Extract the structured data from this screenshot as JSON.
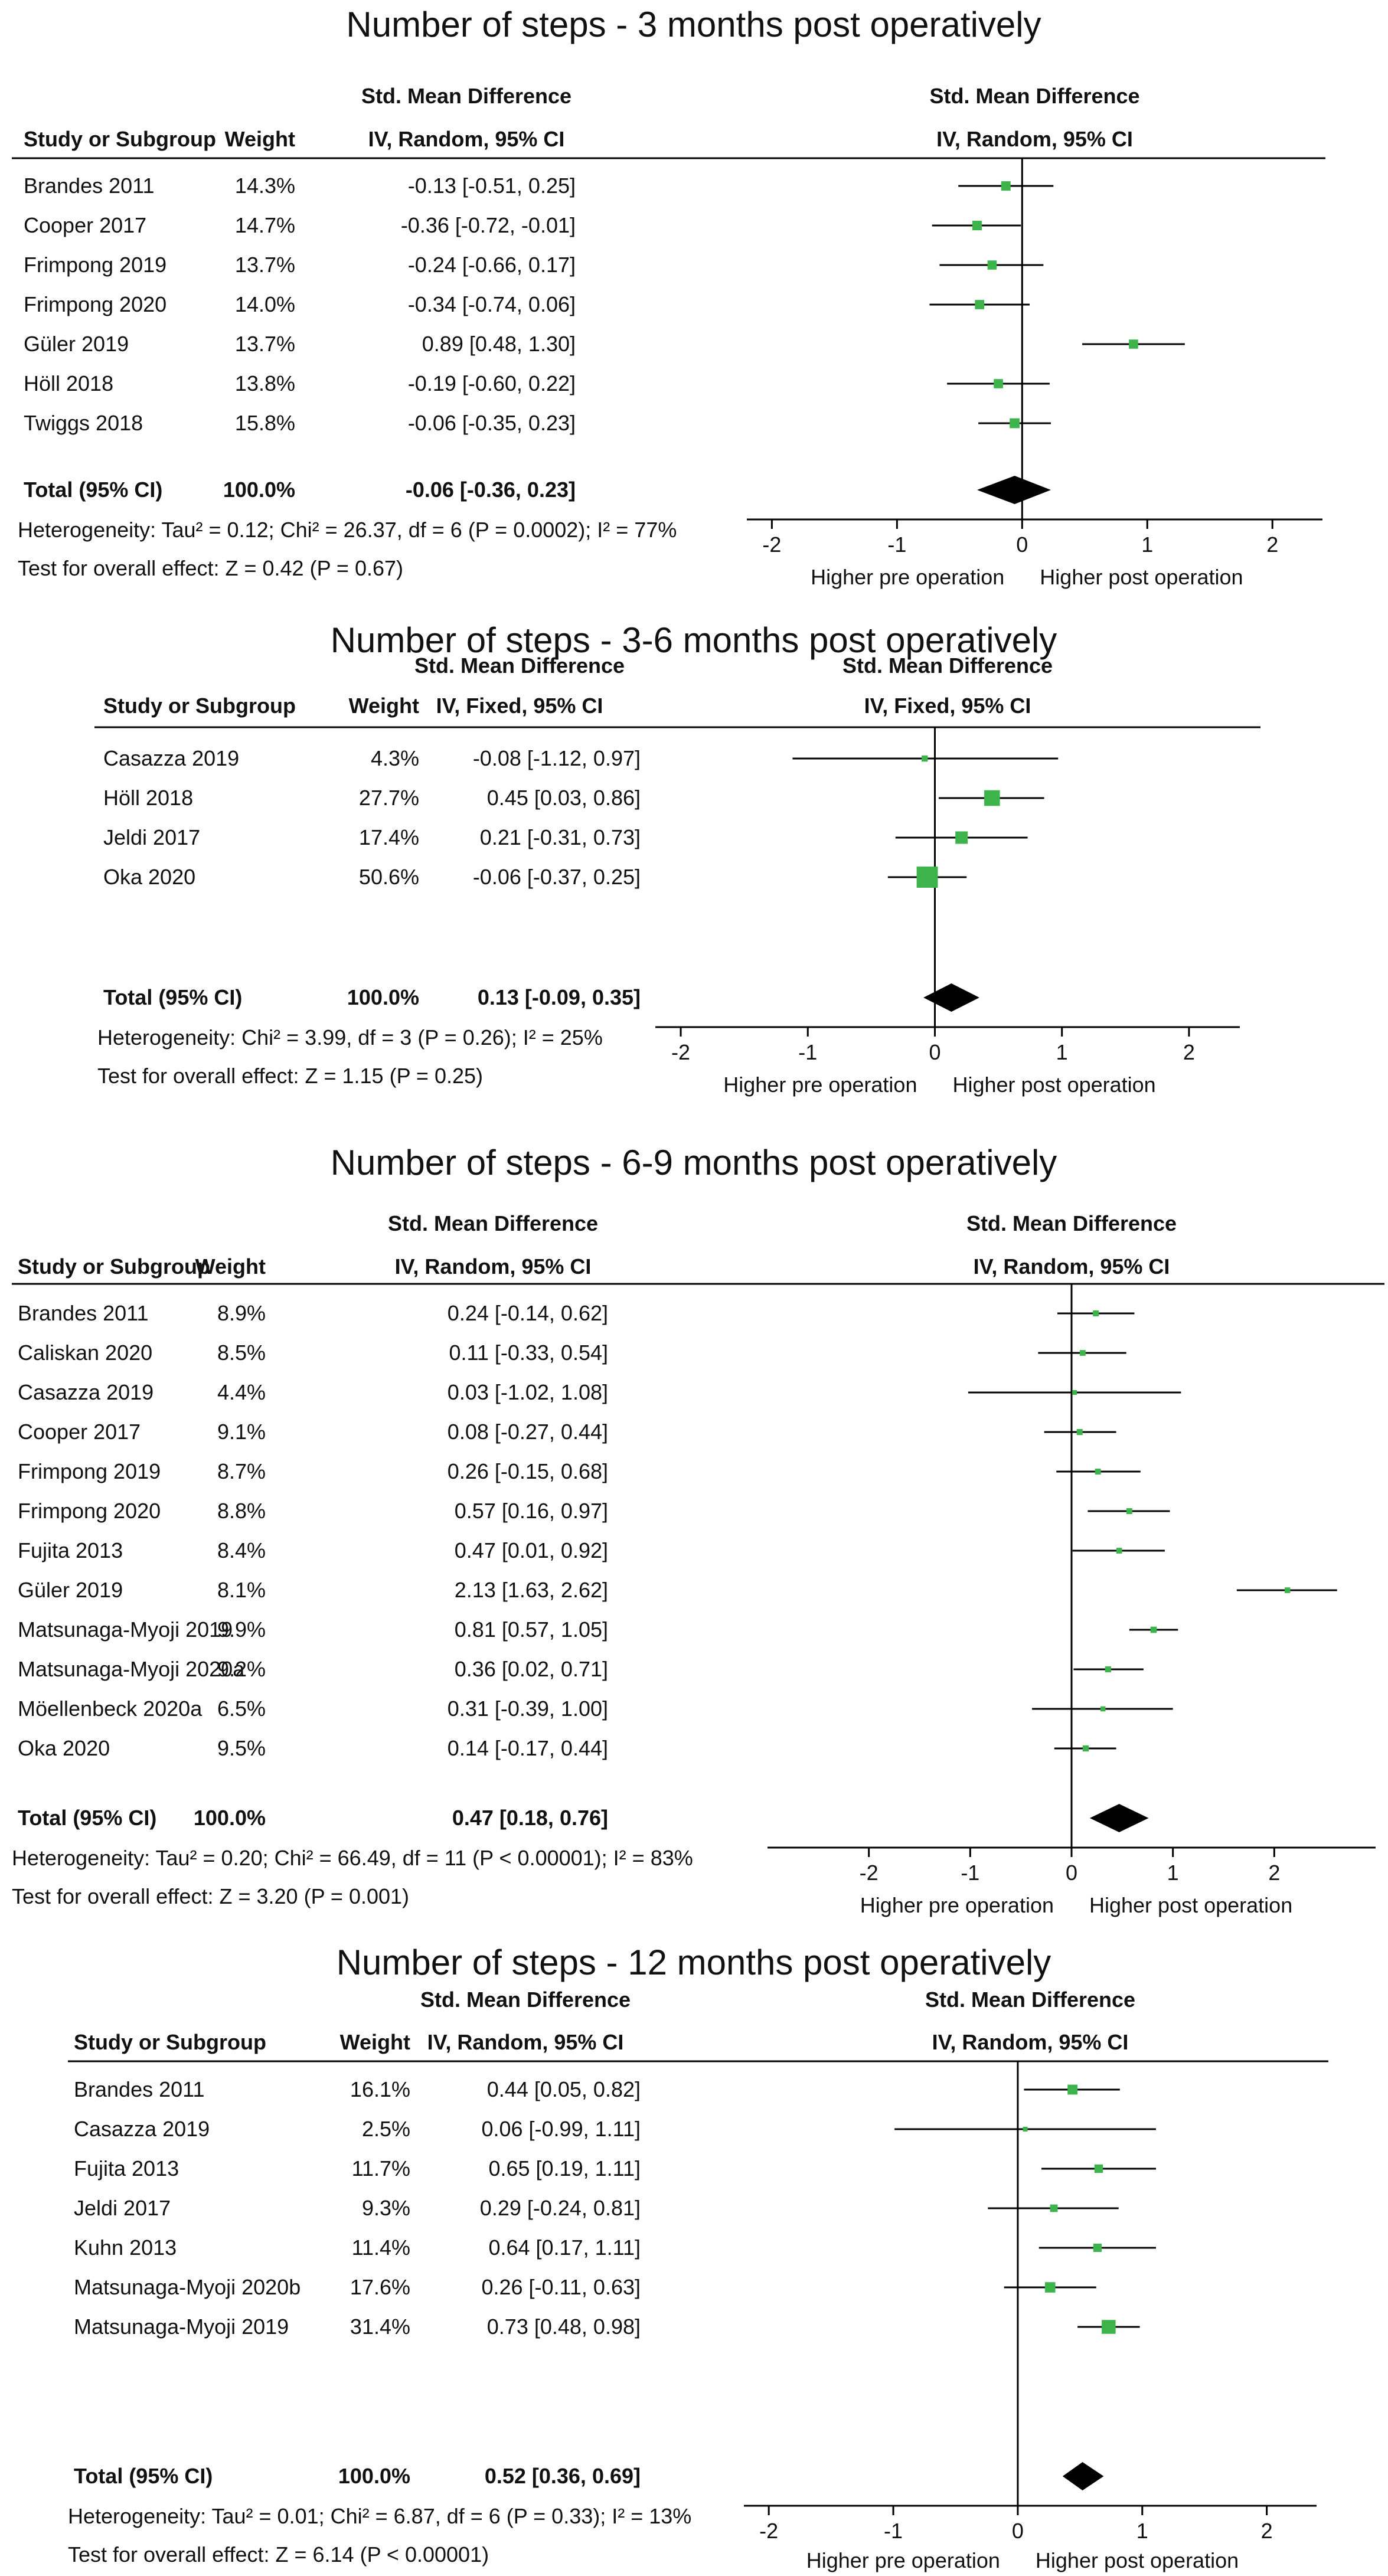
{
  "headers": {
    "study": "Study or Subgroup",
    "weight": "Weight",
    "smd": "Std. Mean Difference"
  },
  "favours": {
    "left": "Higher pre operation",
    "right": "Higher post operation"
  },
  "colors": {
    "marker": "#3cb44b",
    "diamond": "#000000",
    "line": "#000000"
  },
  "chart_data": [
    {
      "type": "forest",
      "title": "Number of steps - 3 months post operatively",
      "method": "IV, Random, 95% CI",
      "axis": {
        "ticks": [
          -2,
          -1,
          0,
          1,
          2
        ],
        "range": [
          -2.2,
          2.4
        ]
      },
      "studies": [
        {
          "name": "Brandes 2011",
          "weight": "14.3%",
          "ci_text": "-0.13 [-0.51, 0.25]",
          "est": -0.13,
          "lo": -0.51,
          "hi": 0.25
        },
        {
          "name": "Cooper 2017",
          "weight": "14.7%",
          "ci_text": "-0.36 [-0.72, -0.01]",
          "est": -0.36,
          "lo": -0.72,
          "hi": -0.01
        },
        {
          "name": "Frimpong 2019",
          "weight": "13.7%",
          "ci_text": "-0.24 [-0.66, 0.17]",
          "est": -0.24,
          "lo": -0.66,
          "hi": 0.17
        },
        {
          "name": "Frimpong 2020",
          "weight": "14.0%",
          "ci_text": "-0.34 [-0.74, 0.06]",
          "est": -0.34,
          "lo": -0.74,
          "hi": 0.06
        },
        {
          "name": "Güler 2019",
          "weight": "13.7%",
          "ci_text": "0.89 [0.48, 1.30]",
          "est": 0.89,
          "lo": 0.48,
          "hi": 1.3
        },
        {
          "name": "Höll 2018",
          "weight": "13.8%",
          "ci_text": "-0.19 [-0.60, 0.22]",
          "est": -0.19,
          "lo": -0.6,
          "hi": 0.22
        },
        {
          "name": "Twiggs 2018",
          "weight": "15.8%",
          "ci_text": "-0.06 [-0.35, 0.23]",
          "est": -0.06,
          "lo": -0.35,
          "hi": 0.23
        }
      ],
      "total": {
        "name": "Total (95% CI)",
        "weight": "100.0%",
        "ci_text": "-0.06 [-0.36, 0.23]",
        "est": -0.06,
        "lo": -0.36,
        "hi": 0.23
      },
      "heterogeneity": "Heterogeneity: Tau² = 0.12; Chi² = 26.37, df = 6 (P = 0.0002); I² = 77%",
      "overall_effect": "Test for overall effect: Z = 0.42 (P = 0.67)"
    },
    {
      "type": "forest",
      "title": "Number of steps - 3-6 months post operatively",
      "method": "IV, Fixed, 95% CI",
      "axis": {
        "ticks": [
          -2,
          -1,
          0,
          1,
          2
        ],
        "range": [
          -2.2,
          2.4
        ]
      },
      "studies": [
        {
          "name": "Casazza 2019",
          "weight": "4.3%",
          "ci_text": "-0.08 [-1.12, 0.97]",
          "est": -0.08,
          "lo": -1.12,
          "hi": 0.97
        },
        {
          "name": "Höll 2018",
          "weight": "27.7%",
          "ci_text": "0.45 [0.03, 0.86]",
          "est": 0.45,
          "lo": 0.03,
          "hi": 0.86
        },
        {
          "name": "Jeldi 2017",
          "weight": "17.4%",
          "ci_text": "0.21 [-0.31, 0.73]",
          "est": 0.21,
          "lo": -0.31,
          "hi": 0.73
        },
        {
          "name": "Oka 2020",
          "weight": "50.6%",
          "ci_text": "-0.06 [-0.37, 0.25]",
          "est": -0.06,
          "lo": -0.37,
          "hi": 0.25
        }
      ],
      "total": {
        "name": "Total (95% CI)",
        "weight": "100.0%",
        "ci_text": "0.13 [-0.09, 0.35]",
        "est": 0.13,
        "lo": -0.09,
        "hi": 0.35
      },
      "heterogeneity": "Heterogeneity: Chi² = 3.99, df = 3 (P = 0.26); I² = 25%",
      "overall_effect": "Test for overall effect: Z = 1.15 (P = 0.25)"
    },
    {
      "type": "forest",
      "title": "Number of steps - 6-9 months post operatively",
      "method": "IV, Random, 95% CI",
      "axis": {
        "ticks": [
          -2,
          -1,
          0,
          1,
          2
        ],
        "range": [
          -3.0,
          3.0
        ]
      },
      "studies": [
        {
          "name": "Brandes 2011",
          "weight": "8.9%",
          "ci_text": "0.24 [-0.14, 0.62]",
          "est": 0.24,
          "lo": -0.14,
          "hi": 0.62
        },
        {
          "name": "Caliskan 2020",
          "weight": "8.5%",
          "ci_text": "0.11 [-0.33, 0.54]",
          "est": 0.11,
          "lo": -0.33,
          "hi": 0.54
        },
        {
          "name": "Casazza 2019",
          "weight": "4.4%",
          "ci_text": "0.03 [-1.02, 1.08]",
          "est": 0.03,
          "lo": -1.02,
          "hi": 1.08
        },
        {
          "name": "Cooper 2017",
          "weight": "9.1%",
          "ci_text": "0.08 [-0.27, 0.44]",
          "est": 0.08,
          "lo": -0.27,
          "hi": 0.44
        },
        {
          "name": "Frimpong 2019",
          "weight": "8.7%",
          "ci_text": "0.26 [-0.15, 0.68]",
          "est": 0.26,
          "lo": -0.15,
          "hi": 0.68
        },
        {
          "name": "Frimpong 2020",
          "weight": "8.8%",
          "ci_text": "0.57 [0.16, 0.97]",
          "est": 0.57,
          "lo": 0.16,
          "hi": 0.97
        },
        {
          "name": "Fujita 2013",
          "weight": "8.4%",
          "ci_text": "0.47 [0.01, 0.92]",
          "est": 0.47,
          "lo": 0.01,
          "hi": 0.92
        },
        {
          "name": "Güler 2019",
          "weight": "8.1%",
          "ci_text": "2.13 [1.63, 2.62]",
          "est": 2.13,
          "lo": 1.63,
          "hi": 2.62
        },
        {
          "name": "Matsunaga-Myoji 2019",
          "weight": "9.9%",
          "ci_text": "0.81 [0.57, 1.05]",
          "est": 0.81,
          "lo": 0.57,
          "hi": 1.05
        },
        {
          "name": "Matsunaga-Myoji 2020a",
          "weight": "9.2%",
          "ci_text": "0.36 [0.02, 0.71]",
          "est": 0.36,
          "lo": 0.02,
          "hi": 0.71
        },
        {
          "name": "Möellenbeck 2020a",
          "weight": "6.5%",
          "ci_text": "0.31 [-0.39, 1.00]",
          "est": 0.31,
          "lo": -0.39,
          "hi": 1.0
        },
        {
          "name": "Oka 2020",
          "weight": "9.5%",
          "ci_text": "0.14 [-0.17, 0.44]",
          "est": 0.14,
          "lo": -0.17,
          "hi": 0.44
        }
      ],
      "total": {
        "name": "Total (95% CI)",
        "weight": "100.0%",
        "ci_text": "0.47 [0.18, 0.76]",
        "est": 0.47,
        "lo": 0.18,
        "hi": 0.76
      },
      "heterogeneity": "Heterogeneity: Tau² = 0.20; Chi² = 66.49, df = 11 (P < 0.00001); I² = 83%",
      "overall_effect": "Test for overall effect: Z = 3.20 (P = 0.001)"
    },
    {
      "type": "forest",
      "title": "Number of steps - 12 months post operatively",
      "method": "IV, Random, 95% CI",
      "axis": {
        "ticks": [
          -2,
          -1,
          0,
          1,
          2
        ],
        "range": [
          -2.2,
          2.4
        ]
      },
      "studies": [
        {
          "name": "Brandes 2011",
          "weight": "16.1%",
          "ci_text": "0.44 [0.05, 0.82]",
          "est": 0.44,
          "lo": 0.05,
          "hi": 0.82
        },
        {
          "name": "Casazza 2019",
          "weight": "2.5%",
          "ci_text": "0.06 [-0.99, 1.11]",
          "est": 0.06,
          "lo": -0.99,
          "hi": 1.11
        },
        {
          "name": "Fujita 2013",
          "weight": "11.7%",
          "ci_text": "0.65 [0.19, 1.11]",
          "est": 0.65,
          "lo": 0.19,
          "hi": 1.11
        },
        {
          "name": "Jeldi 2017",
          "weight": "9.3%",
          "ci_text": "0.29 [-0.24, 0.81]",
          "est": 0.29,
          "lo": -0.24,
          "hi": 0.81
        },
        {
          "name": "Kuhn 2013",
          "weight": "11.4%",
          "ci_text": "0.64 [0.17, 1.11]",
          "est": 0.64,
          "lo": 0.17,
          "hi": 1.11
        },
        {
          "name": "Matsunaga-Myoji  2020b",
          "weight": "17.6%",
          "ci_text": "0.26 [-0.11, 0.63]",
          "est": 0.26,
          "lo": -0.11,
          "hi": 0.63
        },
        {
          "name": "Matsunaga-Myoji 2019",
          "weight": "31.4%",
          "ci_text": "0.73 [0.48, 0.98]",
          "est": 0.73,
          "lo": 0.48,
          "hi": 0.98
        }
      ],
      "total": {
        "name": "Total (95% CI)",
        "weight": "100.0%",
        "ci_text": "0.52 [0.36, 0.69]",
        "est": 0.52,
        "lo": 0.36,
        "hi": 0.69
      },
      "heterogeneity": "Heterogeneity: Tau² = 0.01; Chi² = 6.87, df = 6 (P = 0.33); I² = 13%",
      "overall_effect": "Test for overall effect: Z = 6.14 (P < 0.00001)"
    }
  ]
}
